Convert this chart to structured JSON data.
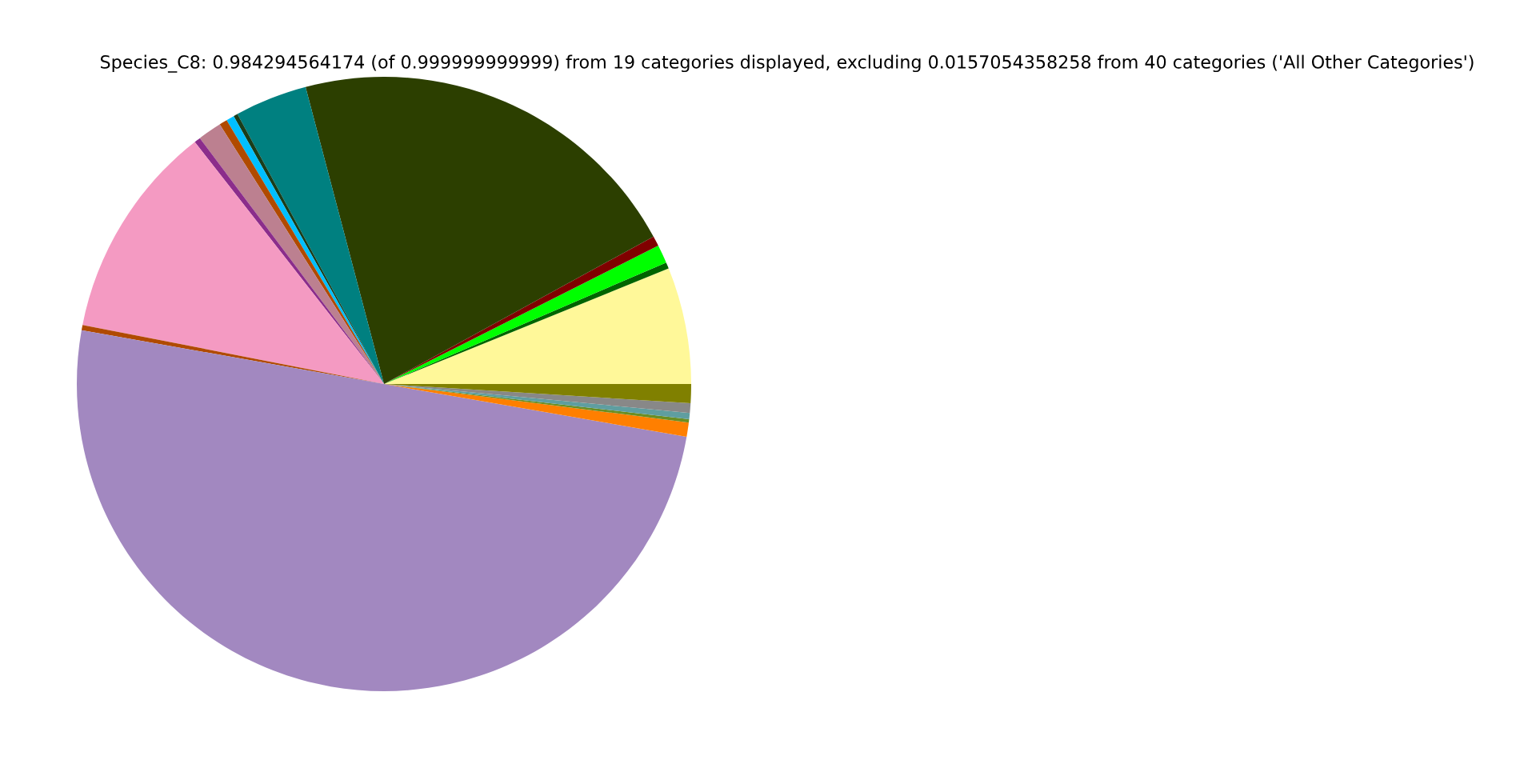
{
  "chart_data": {
    "type": "pie",
    "title": "Species_C8: 0.984294564174 (of 0.999999999999) from 19 categories displayed, excluding 0.0157054358258 from 40 categories ('All Other Categories')",
    "categories": [
      null,
      null,
      null,
      null,
      null,
      null,
      null,
      null,
      null,
      null,
      null,
      null,
      null,
      null,
      null,
      null,
      null,
      null,
      null
    ],
    "values": [
      6.14,
      0.33,
      0.97,
      0.53,
      21.14,
      3.81,
      0.22,
      0.42,
      0.42,
      1.25,
      0.33,
      11.36,
      0.28,
      50.05,
      0.75,
      0.17,
      0.33,
      0.5,
      1.0
    ],
    "colors": [
      "#fff899",
      "#006400",
      "#00ff00",
      "#800000",
      "#2c3f00",
      "#008080",
      "#1a3d1a",
      "#00bfff",
      "#b04a00",
      "#bc8090",
      "#8b2d8b",
      "#f49ac2",
      "#b04a00",
      "#a288c0",
      "#ff7f00",
      "#6b8e23",
      "#5f9ea0",
      "#888888",
      "#808000"
    ],
    "legend": false
  }
}
